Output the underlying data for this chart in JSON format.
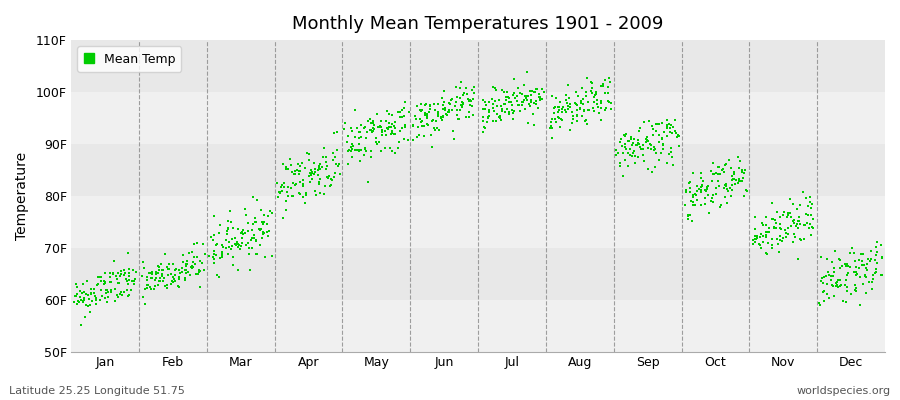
{
  "title": "Monthly Mean Temperatures 1901 - 2009",
  "ylabel": "Temperature",
  "xlabel_labels": [
    "Jan",
    "Feb",
    "Mar",
    "Apr",
    "May",
    "Jun",
    "Jul",
    "Aug",
    "Sep",
    "Oct",
    "Nov",
    "Dec"
  ],
  "ytick_labels": [
    "50F",
    "60F",
    "70F",
    "80F",
    "90F",
    "100F",
    "110F"
  ],
  "ytick_values": [
    50,
    60,
    70,
    80,
    90,
    100,
    110
  ],
  "ylim": [
    50,
    110
  ],
  "xlim": [
    0,
    12
  ],
  "dot_color": "#00CC00",
  "background_color": "#ffffff",
  "footer_left": "Latitude 25.25 Longitude 51.75",
  "footer_right": "worldspecies.org",
  "legend_label": "Mean Temp",
  "monthly_means_start": [
    60,
    63,
    70,
    82,
    90,
    94,
    96,
    95,
    88,
    80,
    72,
    63
  ],
  "monthly_means_end": [
    64,
    67,
    74,
    86,
    94,
    98,
    100,
    99,
    92,
    84,
    76,
    67
  ],
  "monthly_stds": [
    2.0,
    2.0,
    2.5,
    2.5,
    2.5,
    2.0,
    2.0,
    2.0,
    2.5,
    2.5,
    2.5,
    2.5
  ],
  "n_years": 109,
  "band_colors_even": "#f0f0f0",
  "band_colors_odd": "#e8e8e8"
}
